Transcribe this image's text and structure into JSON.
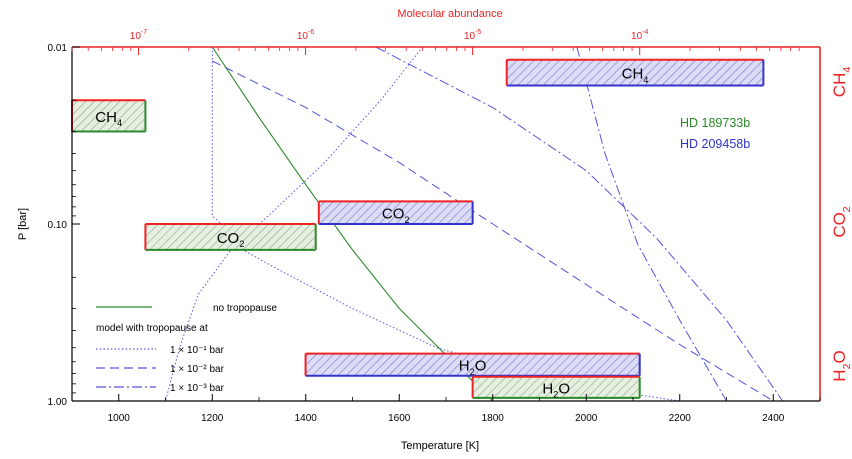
{
  "chart_data": {
    "type": "line",
    "title": "",
    "xlabel": "Temperature [K]",
    "ylabel": "P [bar]",
    "top_xlabel": "Molecular abundance",
    "right_ylabels": [
      {
        "species": "H",
        "sub": "2",
        "tail": "O"
      },
      {
        "species": "CO",
        "sub": "2",
        "tail": ""
      },
      {
        "species": "CH",
        "sub": "4",
        "tail": ""
      }
    ],
    "xlim": [
      900,
      2500
    ],
    "ylim": [
      0.01,
      1.0
    ],
    "yscale": "log",
    "top_xscale": "log",
    "top_xlim": [
      4e-08,
      0.0012
    ],
    "xticks": [
      1000,
      1200,
      1400,
      1600,
      1800,
      2000,
      2200,
      2400
    ],
    "yticks": [
      {
        "value": 0.01,
        "label": "0.01"
      },
      {
        "value": 0.1,
        "label": "0.10"
      },
      {
        "value": 1.0,
        "label": "1.00"
      }
    ],
    "top_xticks": [
      {
        "value": 1e-07,
        "base": "10",
        "exp": "-7"
      },
      {
        "value": 1e-06,
        "base": "10",
        "exp": "-6"
      },
      {
        "value": 1e-05,
        "base": "10",
        "exp": "-5"
      },
      {
        "value": 0.0001,
        "base": "10",
        "exp": "-4"
      }
    ],
    "planets": [
      {
        "name": "HD 189733b",
        "color": "#2a8a2a"
      },
      {
        "name": "HD 209458b",
        "color": "#3333cc"
      }
    ],
    "boxes": [
      {
        "species": "CH",
        "sub": "4",
        "tail": "",
        "planet": "HD 189733b",
        "abundance_range": [
          4e-08,
          1.1e-07
        ],
        "pressure_range": [
          0.02,
          0.03
        ]
      },
      {
        "species": "CH",
        "sub": "4",
        "tail": "",
        "planet": "HD 209458b",
        "abundance_range": [
          1.6e-05,
          0.00055
        ],
        "pressure_range": [
          0.0118,
          0.0165
        ]
      },
      {
        "species": "CO",
        "sub": "2",
        "tail": "",
        "planet": "HD 209458b",
        "abundance_range": [
          1.2e-06,
          1e-05
        ],
        "pressure_range": [
          0.0745,
          0.1
        ]
      },
      {
        "species": "CO",
        "sub": "2",
        "tail": "",
        "planet": "HD 189733b",
        "abundance_range": [
          1.1e-07,
          1.15e-06
        ],
        "pressure_range": [
          0.1,
          0.14
        ]
      },
      {
        "species": "H",
        "sub": "2",
        "tail": "O",
        "planet": "HD 209458b",
        "abundance_range": [
          1e-06,
          0.0001
        ],
        "pressure_range": [
          0.54,
          0.72
        ]
      },
      {
        "species": "H",
        "sub": "2",
        "tail": "O",
        "planet": "HD 189733b",
        "abundance_range": [
          1e-05,
          0.0001
        ],
        "pressure_range": [
          0.73,
          0.96
        ]
      }
    ],
    "series": [
      {
        "name": "no tropopause",
        "style": "solid",
        "color": "#2a8a2a",
        "points": [
          [
            1200,
            0.01
          ],
          [
            1300,
            0.025
          ],
          [
            1400,
            0.06
          ],
          [
            1500,
            0.14
          ],
          [
            1600,
            0.3
          ],
          [
            1700,
            0.55
          ],
          [
            1800,
            1.0
          ]
        ]
      },
      {
        "name": "1 × 10⁻¹ bar",
        "style": "dotted",
        "color": "#5555dd",
        "points": [
          [
            1200,
            0.01
          ],
          [
            1200,
            0.09
          ],
          [
            1220,
            0.1
          ],
          [
            1220,
            0.12
          ],
          [
            1340,
            0.18
          ],
          [
            1500,
            0.3
          ],
          [
            1680,
            0.5
          ],
          [
            1950,
            0.8
          ],
          [
            2200,
            1.0
          ]
        ]
      },
      {
        "name": "1 × 10⁻² bar",
        "style": "dashed",
        "color": "#5555dd",
        "points": [
          [
            1200,
            0.012
          ],
          [
            1400,
            0.022
          ],
          [
            1600,
            0.045
          ],
          [
            1800,
            0.1
          ],
          [
            2000,
            0.22
          ],
          [
            2200,
            0.48
          ],
          [
            2400,
            1.0
          ]
        ]
      },
      {
        "name": "1 × 10⁻³ bar",
        "style": "dashdot",
        "color": "#5555dd",
        "points": [
          [
            1550,
            0.01
          ],
          [
            1800,
            0.022
          ],
          [
            2000,
            0.05
          ],
          [
            2150,
            0.12
          ],
          [
            2300,
            0.35
          ],
          [
            2420,
            1.0
          ]
        ]
      },
      {
        "name": "",
        "style": "dotted",
        "color": "#5555dd",
        "points": [
          [
            1650,
            0.01
          ],
          [
            1560,
            0.02
          ],
          [
            1440,
            0.045
          ],
          [
            1330,
            0.085
          ],
          [
            1240,
            0.14
          ],
          [
            1170,
            0.25
          ],
          [
            1130,
            0.5
          ],
          [
            1100,
            1.0
          ]
        ]
      },
      {
        "name": "",
        "style": "dashdot",
        "color": "#5555dd",
        "points": [
          [
            1980,
            0.01
          ],
          [
            2040,
            0.04
          ],
          [
            2110,
            0.13
          ],
          [
            2200,
            0.35
          ],
          [
            2300,
            1.0
          ]
        ]
      }
    ],
    "legend": {
      "position": "bottom-left",
      "header": "model with tropopause at"
    }
  }
}
